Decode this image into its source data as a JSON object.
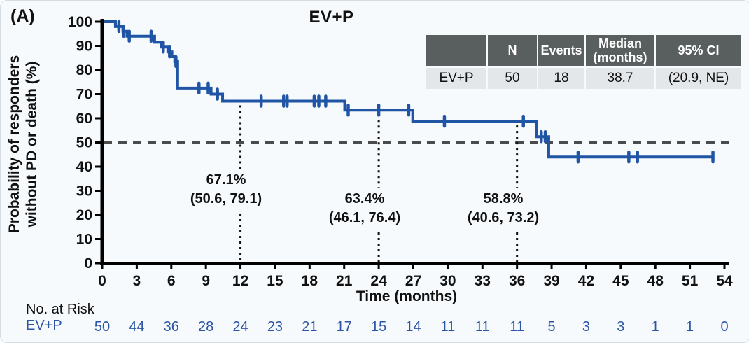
{
  "panel_label": "(A)",
  "title": "EV+P",
  "y_axis_label_line1": "Probability of responders",
  "y_axis_label_line2": "without PD or death (%)",
  "x_axis_label": "Time (months)",
  "summary_table": {
    "headers": [
      "",
      "N",
      "Events",
      "Median\n(months)",
      "95% CI"
    ],
    "row": [
      "EV+P",
      "50",
      "18",
      "38.7",
      "(20.9, NE)"
    ]
  },
  "at_risk": {
    "label": "No. at Risk",
    "group": "EV+P",
    "values": [
      50,
      44,
      36,
      28,
      24,
      23,
      21,
      17,
      15,
      14,
      11,
      11,
      11,
      5,
      3,
      3,
      1,
      1,
      0
    ]
  },
  "colors": {
    "curve": "#1f55a4",
    "at_risk_text": "#2d55a5",
    "table_header_bg": "#595e5e",
    "table_row_bg": "#e4e7e9",
    "reference_line": "#4b4b4b",
    "dotted_line": "#111111",
    "background": "#f7fafc"
  },
  "chart_data": {
    "type": "line",
    "subtype": "kaplan_meier_step",
    "title": "EV+P",
    "xlabel": "Time (months)",
    "ylabel": "Probability of responders without PD or death (%)",
    "xlim": [
      0,
      54
    ],
    "ylim": [
      0,
      100
    ],
    "grid": false,
    "x_ticks": [
      0,
      3,
      6,
      9,
      12,
      15,
      18,
      21,
      24,
      27,
      30,
      33,
      36,
      39,
      42,
      45,
      48,
      51,
      54
    ],
    "y_ticks": [
      0,
      10,
      20,
      30,
      40,
      50,
      60,
      70,
      80,
      90,
      100
    ],
    "reference_line_y": 50,
    "series": [
      {
        "name": "EV+P",
        "n": 50,
        "events": 18,
        "median_months": "38.7",
        "ci_95": "(20.9, NE)",
        "steps": [
          [
            0,
            100
          ],
          [
            1.15,
            98
          ],
          [
            1.8,
            96
          ],
          [
            2.15,
            94
          ],
          [
            4.55,
            91.5
          ],
          [
            5.15,
            89.5
          ],
          [
            5.7,
            87.5
          ],
          [
            6.05,
            85.5
          ],
          [
            6.3,
            83.5
          ],
          [
            6.55,
            72.5
          ],
          [
            9.45,
            70
          ],
          [
            10.45,
            67.1
          ],
          [
            21.05,
            63.4
          ],
          [
            26.95,
            58.8
          ],
          [
            37.7,
            52.4
          ],
          [
            38.75,
            44
          ]
        ],
        "end_month": 53,
        "censor_marks": [
          [
            1.45,
            98
          ],
          [
            1.85,
            96
          ],
          [
            2.35,
            94
          ],
          [
            4.25,
            94
          ],
          [
            5.3,
            89.5
          ],
          [
            5.85,
            87.5
          ],
          [
            6.4,
            83.5
          ],
          [
            8.4,
            72.5
          ],
          [
            9.2,
            72.5
          ],
          [
            10.0,
            70
          ],
          [
            13.8,
            67.1
          ],
          [
            15.75,
            67.1
          ],
          [
            16.05,
            67.1
          ],
          [
            18.4,
            67.1
          ],
          [
            18.8,
            67.1
          ],
          [
            19.4,
            67.1
          ],
          [
            21.35,
            63.4
          ],
          [
            24,
            63.4
          ],
          [
            26.6,
            63.4
          ],
          [
            29.7,
            58.8
          ],
          [
            36.55,
            58.8
          ],
          [
            38.1,
            52.4
          ],
          [
            38.45,
            52.4
          ],
          [
            41.3,
            44
          ],
          [
            45.7,
            44
          ],
          [
            46.45,
            44
          ],
          [
            53,
            44
          ]
        ]
      }
    ],
    "annotations": [
      {
        "month": 12,
        "value": 67.1,
        "pct": "67.1%",
        "ci": "(50.6, 79.1)"
      },
      {
        "month": 24,
        "value": 63.4,
        "pct": "63.4%",
        "ci": "(46.1, 76.4)"
      },
      {
        "month": 36,
        "value": 58.8,
        "pct": "58.8%",
        "ci": "(40.6, 73.2)"
      }
    ]
  }
}
